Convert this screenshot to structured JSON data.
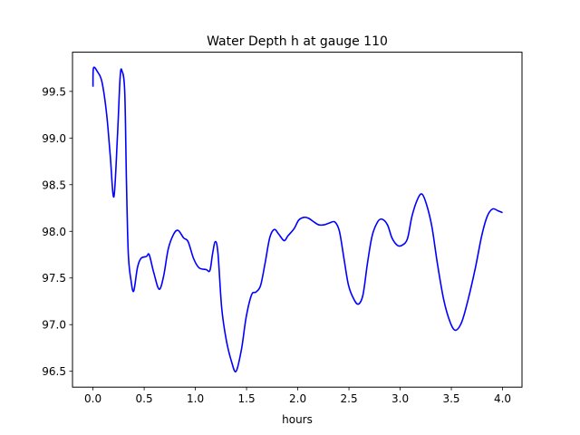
{
  "chart_data": {
    "type": "line",
    "title": "Water Depth h at gauge 110",
    "xlabel": "hours",
    "ylabel": "",
    "xlim": [
      -0.2,
      4.19
    ],
    "ylim": [
      96.33,
      99.92
    ],
    "xticks": [
      0.0,
      0.5,
      1.0,
      1.5,
      2.0,
      2.5,
      3.0,
      3.5,
      4.0
    ],
    "xtick_labels": [
      "0.0",
      "0.5",
      "1.0",
      "1.5",
      "2.0",
      "2.5",
      "3.0",
      "3.5",
      "4.0"
    ],
    "yticks": [
      96.5,
      97.0,
      97.5,
      98.0,
      98.5,
      99.0,
      99.5
    ],
    "ytick_labels": [
      "96.5",
      "97.0",
      "97.5",
      "98.0",
      "98.5",
      "99.0",
      "99.5"
    ],
    "grid": false,
    "series": [
      {
        "name": "h",
        "color": "#0000ff",
        "x": [
          0,
          0.005,
          0.044,
          0.088,
          0.133,
          0.168,
          0.204,
          0.239,
          0.265,
          0.283,
          0.31,
          0.327,
          0.345,
          0.372,
          0.398,
          0.434,
          0.469,
          0.522,
          0.549,
          0.593,
          0.646,
          0.69,
          0.735,
          0.788,
          0.832,
          0.885,
          0.929,
          0.982,
          1.035,
          1.106,
          1.142,
          1.168,
          1.195,
          1.221,
          1.257,
          1.301,
          1.354,
          1.398,
          1.451,
          1.496,
          1.549,
          1.593,
          1.637,
          1.681,
          1.726,
          1.77,
          1.814,
          1.867,
          1.903,
          1.965,
          2.009,
          2.062,
          2.106,
          2.159,
          2.204,
          2.257,
          2.31,
          2.363,
          2.407,
          2.451,
          2.496,
          2.549,
          2.593,
          2.637,
          2.681,
          2.726,
          2.779,
          2.823,
          2.876,
          2.92,
          2.973,
          3.018,
          3.071,
          3.115,
          3.168,
          3.212,
          3.257,
          3.31,
          3.363,
          3.425,
          3.487,
          3.54,
          3.602,
          3.664,
          3.735,
          3.796,
          3.85,
          3.903,
          3.956,
          4.0
        ],
        "y": [
          99.55,
          99.75,
          99.71,
          99.6,
          99.26,
          98.82,
          98.37,
          99.02,
          99.65,
          99.72,
          99.5,
          98.53,
          97.76,
          97.47,
          97.36,
          97.61,
          97.71,
          97.73,
          97.75,
          97.56,
          97.38,
          97.52,
          97.81,
          97.97,
          98.01,
          97.93,
          97.89,
          97.71,
          97.61,
          97.59,
          97.58,
          97.76,
          97.89,
          97.76,
          97.18,
          96.84,
          96.6,
          96.5,
          96.74,
          97.08,
          97.32,
          97.35,
          97.42,
          97.66,
          97.93,
          98.02,
          97.97,
          97.9,
          97.95,
          98.03,
          98.12,
          98.15,
          98.14,
          98.1,
          98.07,
          98.07,
          98.09,
          98.1,
          98.0,
          97.71,
          97.42,
          97.27,
          97.22,
          97.32,
          97.66,
          97.95,
          98.1,
          98.13,
          98.07,
          97.93,
          97.85,
          97.85,
          97.92,
          98.16,
          98.34,
          98.4,
          98.29,
          98.05,
          97.66,
          97.27,
          97.03,
          96.94,
          97.03,
          97.27,
          97.61,
          97.95,
          98.16,
          98.24,
          98.22,
          98.2
        ]
      }
    ]
  }
}
